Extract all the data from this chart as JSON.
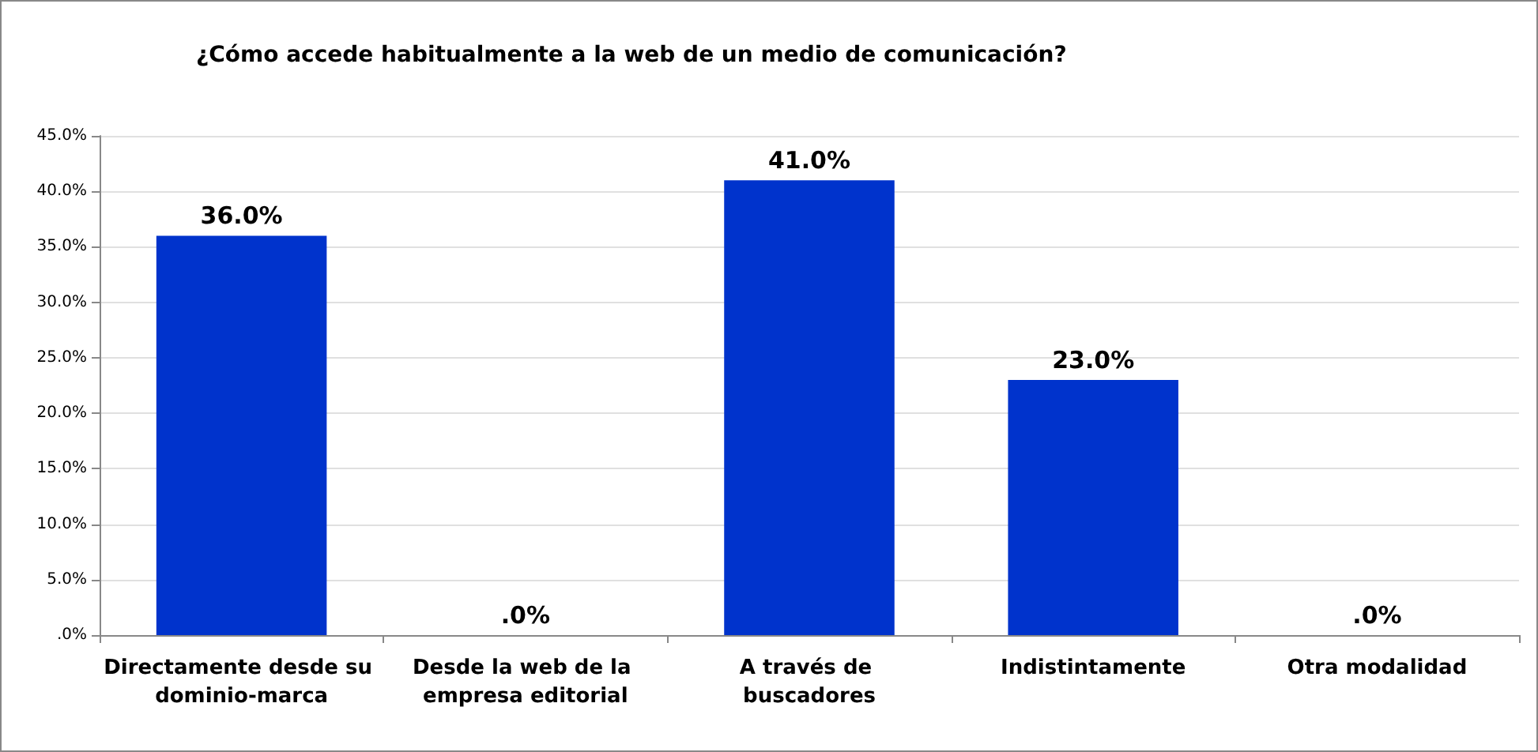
{
  "chart_data": {
    "type": "bar",
    "title": "¿Cómo accede habitualmente a la web de un medio de comunicación?",
    "categories": [
      "Directamente desde su dominio-marca",
      "Desde la web de la empresa editorial",
      "A través de buscadores",
      "Indistintamente",
      "Otra modalidad"
    ],
    "values": [
      36,
      0,
      41,
      23,
      0
    ],
    "value_labels": [
      "36.0%",
      ".0%",
      "41.0%",
      "23.0%",
      ".0%"
    ],
    "color": "#0033cc",
    "ylim": [
      0,
      45
    ],
    "yticks": [
      {
        "value": 0,
        "label": ".0%"
      },
      {
        "value": 5,
        "label": "5.0%"
      },
      {
        "value": 10,
        "label": "10.0%"
      },
      {
        "value": 15,
        "label": "15.0%"
      },
      {
        "value": 20,
        "label": "20.0%"
      },
      {
        "value": 25,
        "label": "25.0%"
      },
      {
        "value": 30,
        "label": "30.0%"
      },
      {
        "value": 35,
        "label": "35.0%"
      },
      {
        "value": 40,
        "label": "40.0%"
      },
      {
        "value": 45,
        "label": "45.0%"
      }
    ],
    "grid": true
  }
}
